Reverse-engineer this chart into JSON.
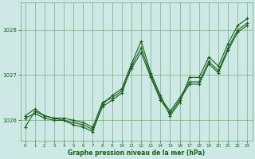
{
  "title": "Graphe pression niveau de la mer (hPa)",
  "bg_color": "#cce9e5",
  "grid_color": "#6aaa6a",
  "line_color": "#1a5c1a",
  "xlim": [
    -0.5,
    23.5
  ],
  "ylim": [
    1025.55,
    1028.6
  ],
  "yticks": [
    1026,
    1027,
    1028
  ],
  "xtick_labels": [
    "0",
    "1",
    "2",
    "3",
    "4",
    "5",
    "6",
    "7",
    "8",
    "9",
    "10",
    "11",
    "12",
    "13",
    "14",
    "15",
    "16",
    "17",
    "18",
    "19",
    "20",
    "21",
    "22",
    "23"
  ],
  "series": [
    [
      1025.85,
      1026.2,
      1026.1,
      1026.05,
      1026.0,
      1025.9,
      1025.85,
      1025.75,
      1026.35,
      1026.55,
      1026.7,
      1027.25,
      1027.75,
      1027.05,
      1026.55,
      1026.1,
      1026.4,
      1026.95,
      1026.95,
      1027.4,
      1027.2,
      1027.7,
      1028.1,
      1028.25
    ],
    [
      1026.05,
      1026.15,
      1026.05,
      1026.0,
      1026.0,
      1025.95,
      1025.9,
      1025.8,
      1026.3,
      1026.45,
      1026.6,
      1027.2,
      1027.6,
      1027.0,
      1026.5,
      1026.2,
      1026.5,
      1026.85,
      1026.85,
      1027.3,
      1027.1,
      1027.6,
      1028.0,
      1028.15
    ],
    [
      1026.1,
      1026.25,
      1026.1,
      1026.05,
      1026.05,
      1026.0,
      1025.95,
      1025.85,
      1026.4,
      1026.5,
      1026.65,
      1027.15,
      1027.5,
      1026.95,
      1026.45,
      1026.15,
      1026.45,
      1026.8,
      1026.8,
      1027.25,
      1027.05,
      1027.55,
      1027.95,
      1028.1
    ]
  ]
}
